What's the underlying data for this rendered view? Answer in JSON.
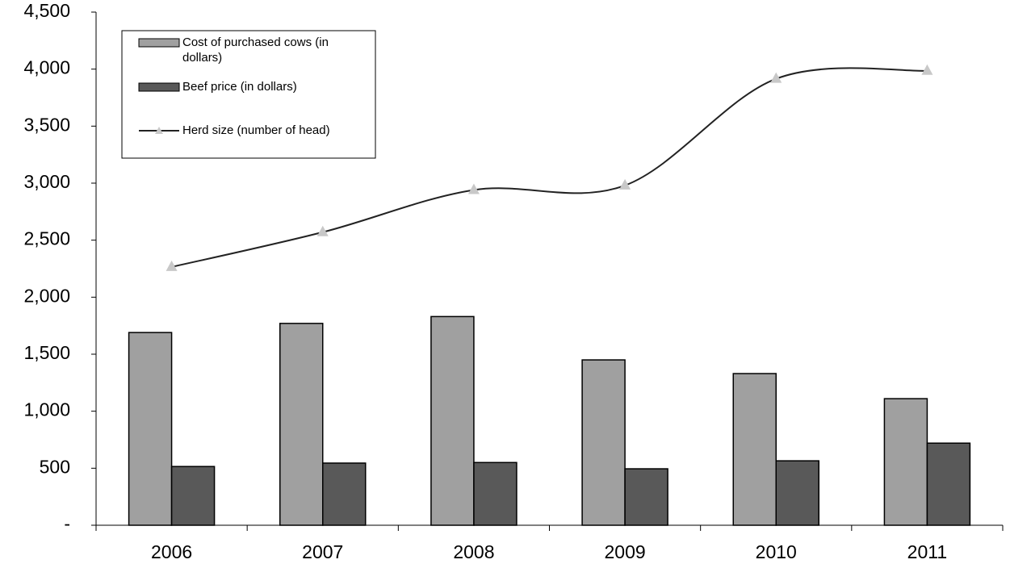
{
  "chart_data": {
    "type": "bar",
    "categories": [
      "2006",
      "2007",
      "2008",
      "2009",
      "2010",
      "2011"
    ],
    "series": [
      {
        "name": "Cost of purchased cows (in dollars)",
        "type": "bar",
        "color": "#a0a0a0",
        "values": [
          1690,
          1770,
          1830,
          1450,
          1330,
          1110
        ]
      },
      {
        "name": "Beef price (in dollars)",
        "type": "bar",
        "color": "#595959",
        "values": [
          515,
          545,
          550,
          495,
          565,
          720
        ]
      },
      {
        "name": "Herd size (number of head)",
        "type": "line",
        "color": "#222222",
        "marker_color": "#c8c8c8",
        "smooth": true,
        "values": [
          2265,
          2570,
          2940,
          2980,
          3915,
          3985
        ]
      }
    ],
    "ylim": [
      0,
      4500
    ],
    "yticks": [
      {
        "value": 0,
        "label": "-"
      },
      {
        "value": 500,
        "label": "500"
      },
      {
        "value": 1000,
        "label": "1,000"
      },
      {
        "value": 1500,
        "label": "1,500"
      },
      {
        "value": 2000,
        "label": "2,000"
      },
      {
        "value": 2500,
        "label": "2,500"
      },
      {
        "value": 3000,
        "label": "3,000"
      },
      {
        "value": 3500,
        "label": "3,500"
      },
      {
        "value": 4000,
        "label": "4,000"
      },
      {
        "value": 4500,
        "label": "4,500"
      }
    ],
    "legend": "upper-left"
  }
}
